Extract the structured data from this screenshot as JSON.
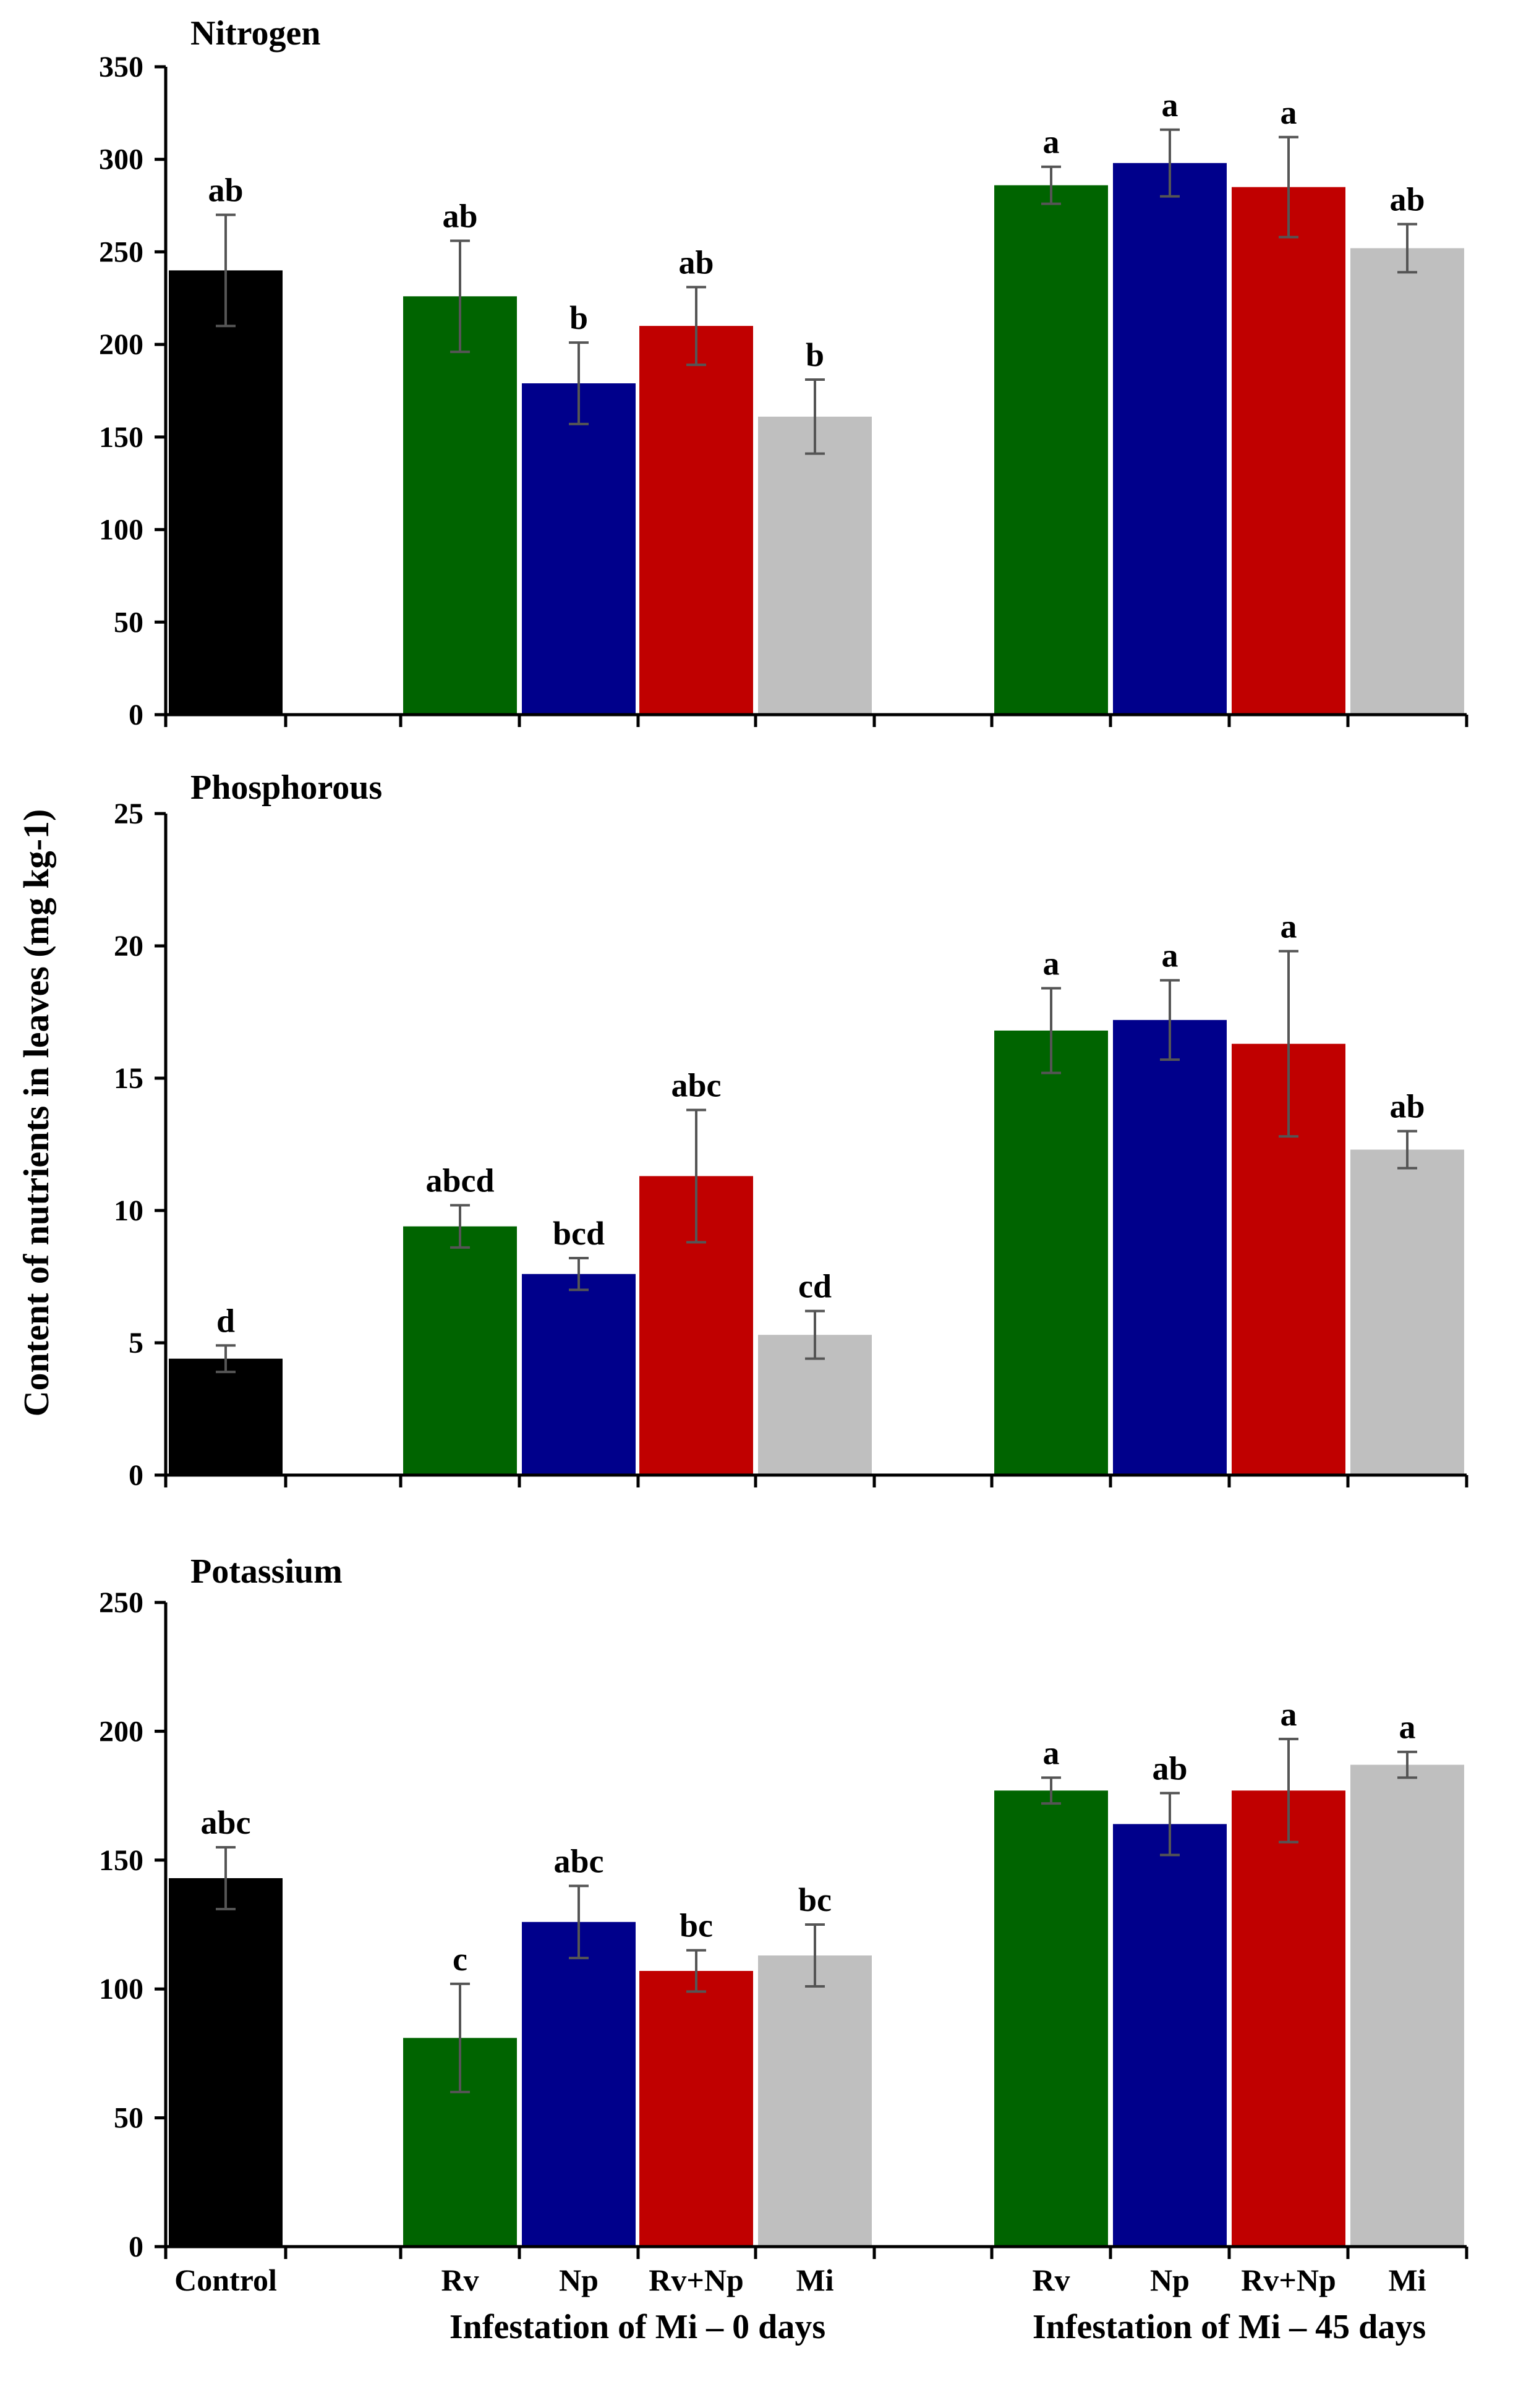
{
  "chart_data": {
    "type": "bar",
    "ylabel": "Content of nutrients in leaves (mg kg-1)",
    "categories": [
      "Control",
      "Rv",
      "Np",
      "Rv+Np",
      "Mi",
      "Rv",
      "Np",
      "Rv+Np",
      "Mi"
    ],
    "groups": [
      {
        "label": "Infestation of Mi – 0 days",
        "members": [
          1,
          2,
          3,
          4
        ]
      },
      {
        "label": "Infestation of Mi – 45 days",
        "members": [
          5,
          6,
          7,
          8
        ]
      }
    ],
    "colors": {
      "control": "#000000",
      "rv": "#006400",
      "np": "#00008B",
      "rvnp": "#C00000",
      "mi": "#BFBFBF",
      "error": "#555555",
      "axis": "#000000"
    },
    "bar_color_keys": [
      "control",
      "rv",
      "np",
      "rvnp",
      "mi",
      "rv",
      "np",
      "rvnp",
      "mi"
    ],
    "panels": [
      {
        "title": "Nitrogen",
        "ylim": [
          0,
          350
        ],
        "yticks": [
          0,
          50,
          100,
          150,
          200,
          250,
          300,
          350
        ],
        "values": [
          240,
          226,
          179,
          210,
          161,
          286,
          298,
          285,
          252
        ],
        "errors": [
          30,
          30,
          22,
          21,
          20,
          10,
          18,
          27,
          13
        ],
        "labels": [
          "ab",
          "ab",
          "b",
          "ab",
          "b",
          "a",
          "a",
          "a",
          "ab"
        ]
      },
      {
        "title": "Phosphorous",
        "ylim": [
          0,
          25
        ],
        "yticks": [
          0,
          5,
          10,
          15,
          20,
          25
        ],
        "values": [
          4.4,
          9.4,
          7.6,
          11.3,
          5.3,
          16.8,
          17.2,
          16.3,
          12.3
        ],
        "errors": [
          0.5,
          0.8,
          0.6,
          2.5,
          0.9,
          1.6,
          1.5,
          3.5,
          0.7
        ],
        "labels": [
          "d",
          "abcd",
          "bcd",
          "abc",
          "cd",
          "a",
          "a",
          "a",
          "ab"
        ]
      },
      {
        "title": "Potassium",
        "ylim": [
          0,
          250
        ],
        "yticks": [
          0,
          50,
          100,
          150,
          200,
          250
        ],
        "values": [
          143,
          81,
          126,
          107,
          113,
          177,
          164,
          177,
          187
        ],
        "errors": [
          12,
          21,
          14,
          8,
          12,
          5,
          12,
          20,
          5
        ],
        "labels": [
          "abc",
          "c",
          "abc",
          "bc",
          "bc",
          "a",
          "ab",
          "a",
          "a"
        ]
      }
    ]
  }
}
